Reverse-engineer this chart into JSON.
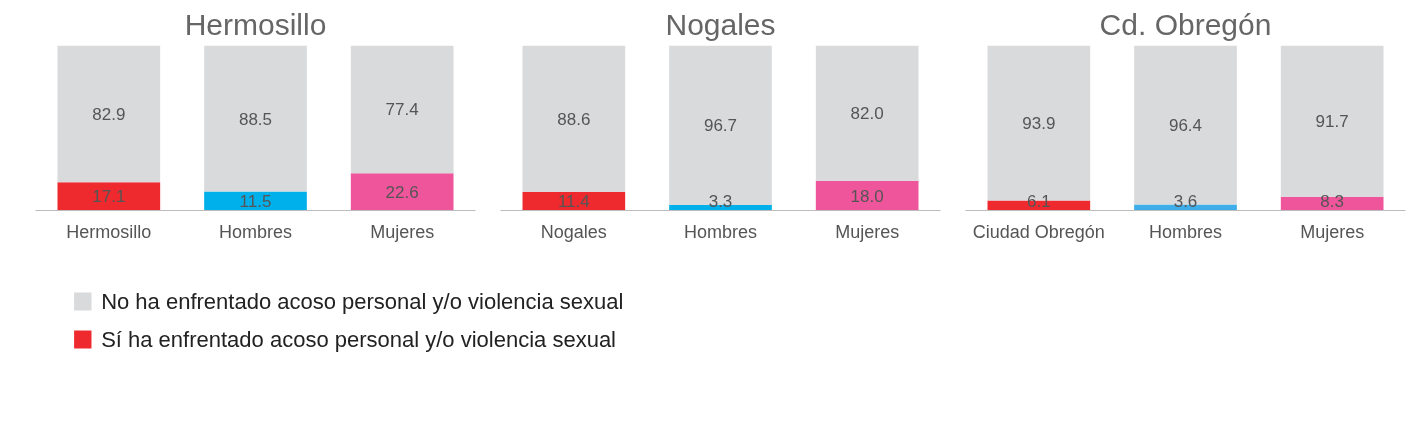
{
  "chart_data": [
    {
      "type": "bar",
      "title": "Hermosillo",
      "categories": [
        "Hermosillo",
        "Hombres",
        "Mujeres"
      ],
      "stacked": true,
      "data_labels": true,
      "tick_labels": "x",
      "legend": "bottom right",
      "series": [
        {
          "name": "Sí ha enfrentado acoso personal y/o violencia sexual",
          "colors": [
            "#ee2a2f",
            "#00b0eb",
            "#ef559b"
          ],
          "values": [
            17.1,
            11.5,
            22.6
          ]
        },
        {
          "name": "No ha enfrentado acoso personal y/o violencia sexual",
          "color": "#d9dadc",
          "values": [
            82.9,
            88.5,
            77.4
          ]
        }
      ]
    },
    {
      "type": "bar",
      "title": "Nogales",
      "categories": [
        "Nogales",
        "Hombres",
        "Mujeres"
      ],
      "stacked": true,
      "data_labels": true,
      "tick_labels": "x",
      "series": [
        {
          "colors": [
            "#ee2a2f",
            "#00b0eb",
            "#ef559b"
          ],
          "values": [
            11.4,
            3.3,
            18.0
          ],
          "value_labels": [
            "11.4",
            "3.3",
            "18.0"
          ]
        },
        {
          "color": "#d9dadc",
          "values": [
            88.6,
            96.7,
            82.0
          ],
          "value_labels": [
            "88.6",
            "96.7",
            "82.0"
          ]
        }
      ]
    },
    {
      "type": "bar",
      "title": "Cd. Obregón",
      "categories": [
        "Ciudad Obregón",
        "Hombres",
        "Mujeres"
      ],
      "stacked": true,
      "data_labels": true,
      "tick_labels": "x",
      "series": [
        {
          "colors": [
            "#ee2a2f",
            "#3daee9",
            "#ef559b"
          ],
          "values": [
            6.1,
            3.6,
            8.3
          ]
        },
        {
          "color": "#d9dadc",
          "values": [
            93.9,
            96.4,
            91.7
          ]
        }
      ]
    }
  ]
}
